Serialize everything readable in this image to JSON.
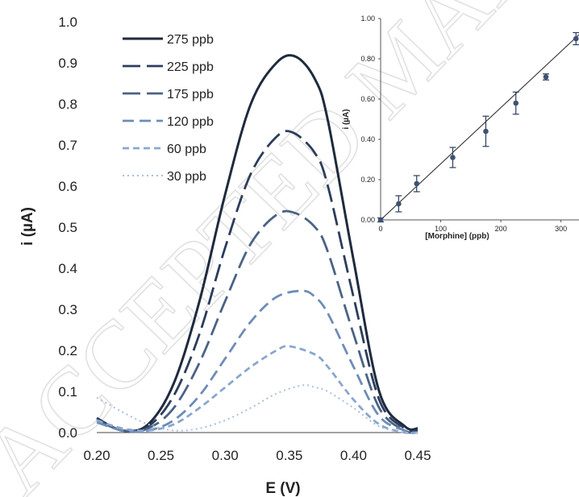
{
  "chart_data": [
    {
      "type": "line",
      "title": "",
      "xlabel": "E (V)",
      "ylabel": "i (µA)",
      "xlim": [
        0.2,
        0.45
      ],
      "ylim": [
        0.0,
        1.0
      ],
      "x_ticks": [
        "0.20",
        "0.25",
        "0.30",
        "0.35",
        "0.40",
        "0.45"
      ],
      "y_ticks": [
        "0.0",
        "0.1",
        "0.2",
        "0.3",
        "0.4",
        "0.5",
        "0.6",
        "0.7",
        "0.8",
        "0.9",
        "1.0"
      ],
      "legend_position": "top-left",
      "series": [
        {
          "name": "275 ppb",
          "color": "#1f2a3d",
          "dash": "solid",
          "x": [
            0.2,
            0.22,
            0.24,
            0.26,
            0.28,
            0.3,
            0.32,
            0.34,
            0.355,
            0.37,
            0.38,
            0.4,
            0.42,
            0.44,
            0.45
          ],
          "values": [
            0.035,
            0.005,
            0.02,
            0.12,
            0.32,
            0.58,
            0.8,
            0.9,
            0.915,
            0.86,
            0.76,
            0.42,
            0.1,
            0.015,
            0.01
          ]
        },
        {
          "name": "225 ppb",
          "color": "#2b3d5c",
          "dash": "long-dash",
          "x": [
            0.2,
            0.22,
            0.24,
            0.26,
            0.28,
            0.3,
            0.32,
            0.34,
            0.353,
            0.37,
            0.38,
            0.4,
            0.42,
            0.44,
            0.45
          ],
          "values": [
            0.035,
            0.005,
            0.015,
            0.09,
            0.24,
            0.45,
            0.63,
            0.72,
            0.73,
            0.68,
            0.6,
            0.33,
            0.08,
            0.01,
            0.005
          ]
        },
        {
          "name": "175 ppb",
          "color": "#4a6385",
          "dash": "long-dash",
          "x": [
            0.2,
            0.22,
            0.24,
            0.26,
            0.28,
            0.3,
            0.32,
            0.34,
            0.354,
            0.37,
            0.38,
            0.4,
            0.42,
            0.44,
            0.45
          ],
          "values": [
            0.03,
            0.005,
            0.01,
            0.06,
            0.17,
            0.32,
            0.46,
            0.53,
            0.535,
            0.5,
            0.44,
            0.24,
            0.06,
            0.005,
            0.0
          ]
        },
        {
          "name": "120 ppb",
          "color": "#6e8cb8",
          "dash": "dash",
          "x": [
            0.2,
            0.22,
            0.24,
            0.26,
            0.28,
            0.3,
            0.32,
            0.34,
            0.36,
            0.37,
            0.38,
            0.4,
            0.42,
            0.44,
            0.45
          ],
          "values": [
            0.025,
            0.005,
            0.005,
            0.03,
            0.09,
            0.18,
            0.27,
            0.33,
            0.345,
            0.33,
            0.29,
            0.16,
            0.04,
            0.005,
            0.0
          ]
        },
        {
          "name": "60 ppb",
          "color": "#8aa6cf",
          "dash": "short-dash",
          "x": [
            0.2,
            0.22,
            0.24,
            0.26,
            0.28,
            0.3,
            0.32,
            0.34,
            0.35,
            0.37,
            0.38,
            0.4,
            0.42,
            0.44,
            0.45
          ],
          "values": [
            0.03,
            0.01,
            0.005,
            0.02,
            0.06,
            0.11,
            0.16,
            0.2,
            0.21,
            0.19,
            0.16,
            0.08,
            0.02,
            0.0,
            0.0
          ]
        },
        {
          "name": "30 ppb",
          "color": "#a9bfdd",
          "dash": "dot",
          "x": [
            0.2,
            0.22,
            0.24,
            0.26,
            0.28,
            0.3,
            0.32,
            0.34,
            0.36,
            0.37,
            0.38,
            0.4,
            0.42,
            0.44,
            0.45
          ],
          "values": [
            0.085,
            0.05,
            0.02,
            0.005,
            0.01,
            0.03,
            0.06,
            0.095,
            0.115,
            0.11,
            0.1,
            0.06,
            0.015,
            0.0,
            0.0
          ]
        }
      ]
    },
    {
      "type": "scatter",
      "title": "",
      "xlabel": "[Morphine] (ppb)",
      "ylabel": "i (µA)",
      "xlim": [
        0,
        330
      ],
      "ylim": [
        0.0,
        1.0
      ],
      "x_ticks": [
        "0",
        "100",
        "200",
        "300"
      ],
      "y_ticks": [
        "0.00",
        "0.20",
        "0.40",
        "0.60",
        "0.80",
        "1.00"
      ],
      "grid": false,
      "x": [
        0,
        30,
        60,
        120,
        175,
        225,
        275,
        325
      ],
      "values": [
        0.0,
        0.08,
        0.18,
        0.31,
        0.44,
        0.58,
        0.71,
        0.9
      ],
      "errors": [
        0.01,
        0.04,
        0.04,
        0.05,
        0.075,
        0.055,
        0.015,
        0.03
      ],
      "fit_line": {
        "x": [
          0,
          330
        ],
        "y": [
          0.0,
          0.92
        ]
      }
    }
  ],
  "watermark": "ACCEPTED MANUSCRIPT"
}
